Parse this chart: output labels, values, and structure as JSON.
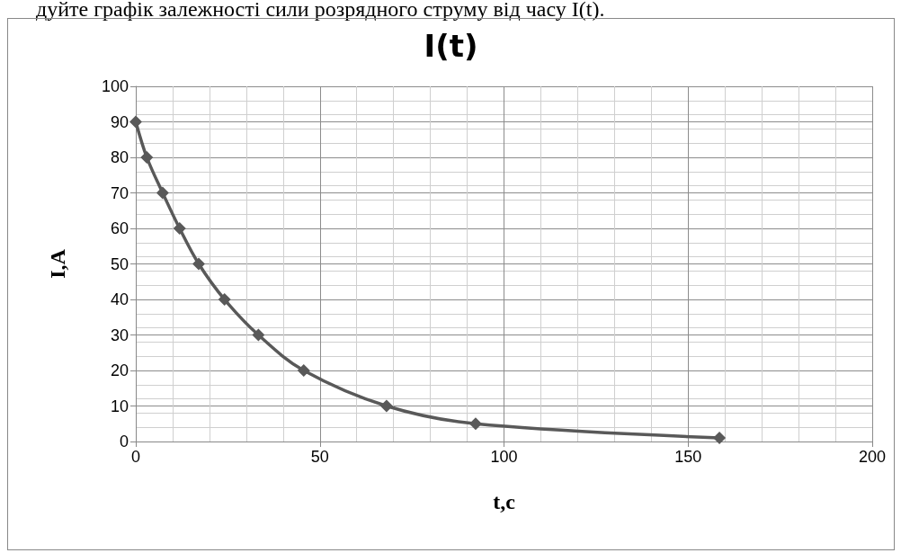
{
  "chart_data": {
    "type": "line",
    "title": "I(t)",
    "xlabel": "t,c",
    "ylabel": "I,A",
    "annotations": [
      "дуйте графік залежності сили розрядного струму від часу I(t)."
    ],
    "x": [
      0,
      3,
      7.3,
      11.9,
      17.1,
      24.1,
      33.3,
      45.6,
      68.1,
      92.3,
      158.5
    ],
    "series": [
      {
        "color": "#595959",
        "values": [
          90,
          80,
          70,
          60,
          50,
          40,
          30,
          20,
          10,
          5,
          1
        ]
      }
    ],
    "xlim": [
      0,
      200
    ],
    "xticks": [
      0,
      50,
      100,
      150,
      200
    ],
    "ylim": [
      0,
      100
    ],
    "yticks": [
      0,
      10,
      20,
      30,
      40,
      50,
      60,
      70,
      80,
      90,
      100
    ],
    "grid": true,
    "marker": "diamond",
    "line_style": "solid"
  }
}
